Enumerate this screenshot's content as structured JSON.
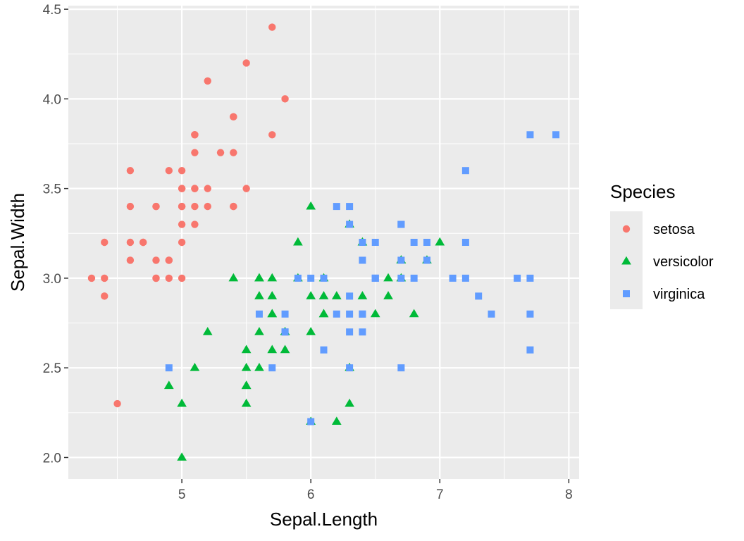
{
  "chart_data": {
    "type": "scatter",
    "xlabel": "Sepal.Length",
    "ylabel": "Sepal.Width",
    "xlim": [
      4.12,
      8.08
    ],
    "ylim": [
      1.88,
      4.52
    ],
    "x_ticks": [
      5,
      6,
      7,
      8
    ],
    "y_ticks": [
      2.0,
      2.5,
      3.0,
      3.5,
      4.0,
      4.5
    ],
    "x_tick_labels": [
      "5",
      "6",
      "7",
      "8"
    ],
    "y_tick_labels": [
      "2.0",
      "2.5",
      "3.0",
      "3.5",
      "4.0",
      "4.5"
    ],
    "grid": true,
    "background": "#ebebeb",
    "legend": {
      "title": "Species",
      "placement": "right"
    },
    "series": [
      {
        "name": "setosa",
        "color": "#f8766d",
        "shape": "circle",
        "points": [
          [
            5.1,
            3.5
          ],
          [
            4.9,
            3.0
          ],
          [
            4.7,
            3.2
          ],
          [
            4.6,
            3.1
          ],
          [
            5.0,
            3.6
          ],
          [
            5.4,
            3.9
          ],
          [
            4.6,
            3.4
          ],
          [
            5.0,
            3.4
          ],
          [
            4.4,
            2.9
          ],
          [
            4.9,
            3.1
          ],
          [
            5.4,
            3.7
          ],
          [
            4.8,
            3.4
          ],
          [
            4.8,
            3.0
          ],
          [
            4.3,
            3.0
          ],
          [
            5.8,
            4.0
          ],
          [
            5.7,
            4.4
          ],
          [
            5.4,
            3.9
          ],
          [
            5.1,
            3.5
          ],
          [
            5.7,
            3.8
          ],
          [
            5.1,
            3.8
          ],
          [
            5.4,
            3.4
          ],
          [
            5.1,
            3.7
          ],
          [
            4.6,
            3.6
          ],
          [
            5.1,
            3.3
          ],
          [
            4.8,
            3.4
          ],
          [
            5.0,
            3.0
          ],
          [
            5.0,
            3.4
          ],
          [
            5.2,
            3.5
          ],
          [
            5.2,
            3.4
          ],
          [
            4.7,
            3.2
          ],
          [
            4.8,
            3.1
          ],
          [
            5.4,
            3.4
          ],
          [
            5.2,
            4.1
          ],
          [
            5.5,
            4.2
          ],
          [
            4.9,
            3.1
          ],
          [
            5.0,
            3.2
          ],
          [
            5.5,
            3.5
          ],
          [
            4.9,
            3.6
          ],
          [
            4.4,
            3.0
          ],
          [
            5.1,
            3.4
          ],
          [
            5.0,
            3.5
          ],
          [
            4.5,
            2.3
          ],
          [
            4.4,
            3.2
          ],
          [
            5.0,
            3.5
          ],
          [
            5.1,
            3.8
          ],
          [
            4.8,
            3.0
          ],
          [
            5.1,
            3.8
          ],
          [
            4.6,
            3.2
          ],
          [
            5.3,
            3.7
          ],
          [
            5.0,
            3.3
          ]
        ]
      },
      {
        "name": "versicolor",
        "color": "#00ba38",
        "shape": "triangle",
        "points": [
          [
            7.0,
            3.2
          ],
          [
            6.4,
            3.2
          ],
          [
            6.9,
            3.1
          ],
          [
            5.5,
            2.3
          ],
          [
            6.5,
            2.8
          ],
          [
            5.7,
            2.8
          ],
          [
            6.3,
            3.3
          ],
          [
            4.9,
            2.4
          ],
          [
            6.6,
            2.9
          ],
          [
            5.2,
            2.7
          ],
          [
            5.0,
            2.0
          ],
          [
            5.9,
            3.0
          ],
          [
            6.0,
            2.2
          ],
          [
            6.1,
            2.9
          ],
          [
            5.6,
            2.9
          ],
          [
            6.7,
            3.1
          ],
          [
            5.6,
            3.0
          ],
          [
            5.8,
            2.7
          ],
          [
            6.2,
            2.2
          ],
          [
            5.6,
            2.5
          ],
          [
            5.9,
            3.2
          ],
          [
            6.1,
            2.8
          ],
          [
            6.3,
            2.5
          ],
          [
            6.1,
            2.8
          ],
          [
            6.4,
            2.9
          ],
          [
            6.6,
            3.0
          ],
          [
            6.8,
            2.8
          ],
          [
            6.7,
            3.0
          ],
          [
            6.0,
            2.9
          ],
          [
            5.7,
            2.6
          ],
          [
            5.5,
            2.4
          ],
          [
            5.5,
            2.4
          ],
          [
            5.8,
            2.7
          ],
          [
            6.0,
            2.7
          ],
          [
            5.4,
            3.0
          ],
          [
            6.0,
            3.4
          ],
          [
            6.7,
            3.1
          ],
          [
            6.3,
            2.3
          ],
          [
            5.6,
            3.0
          ],
          [
            5.5,
            2.5
          ],
          [
            5.5,
            2.6
          ],
          [
            6.1,
            3.0
          ],
          [
            5.8,
            2.6
          ],
          [
            5.0,
            2.3
          ],
          [
            5.6,
            2.7
          ],
          [
            5.7,
            3.0
          ],
          [
            5.7,
            2.9
          ],
          [
            6.2,
            2.9
          ],
          [
            5.1,
            2.5
          ],
          [
            5.7,
            2.8
          ]
        ]
      },
      {
        "name": "virginica",
        "color": "#619cff",
        "shape": "square",
        "points": [
          [
            6.3,
            3.3
          ],
          [
            5.8,
            2.7
          ],
          [
            7.1,
            3.0
          ],
          [
            6.3,
            2.9
          ],
          [
            6.5,
            3.0
          ],
          [
            7.6,
            3.0
          ],
          [
            4.9,
            2.5
          ],
          [
            7.3,
            2.9
          ],
          [
            6.7,
            2.5
          ],
          [
            7.2,
            3.6
          ],
          [
            6.5,
            3.2
          ],
          [
            6.4,
            2.7
          ],
          [
            6.8,
            3.0
          ],
          [
            5.7,
            2.5
          ],
          [
            5.8,
            2.8
          ],
          [
            6.4,
            3.2
          ],
          [
            6.5,
            3.0
          ],
          [
            7.7,
            3.8
          ],
          [
            7.7,
            2.6
          ],
          [
            6.0,
            2.2
          ],
          [
            6.9,
            3.2
          ],
          [
            5.6,
            2.8
          ],
          [
            7.7,
            2.8
          ],
          [
            6.3,
            2.7
          ],
          [
            6.7,
            3.3
          ],
          [
            7.2,
            3.2
          ],
          [
            6.2,
            2.8
          ],
          [
            6.1,
            3.0
          ],
          [
            6.4,
            2.8
          ],
          [
            7.2,
            3.0
          ],
          [
            7.4,
            2.8
          ],
          [
            7.9,
            3.8
          ],
          [
            6.4,
            2.8
          ],
          [
            6.3,
            2.8
          ],
          [
            6.1,
            2.6
          ],
          [
            7.7,
            3.0
          ],
          [
            6.3,
            3.4
          ],
          [
            6.4,
            3.1
          ],
          [
            6.0,
            3.0
          ],
          [
            6.9,
            3.1
          ],
          [
            6.7,
            3.1
          ],
          [
            6.9,
            3.1
          ],
          [
            5.8,
            2.7
          ],
          [
            6.8,
            3.2
          ],
          [
            6.7,
            3.3
          ],
          [
            6.7,
            3.0
          ],
          [
            6.3,
            2.5
          ],
          [
            6.5,
            3.0
          ],
          [
            6.2,
            3.4
          ],
          [
            5.9,
            3.0
          ]
        ]
      }
    ]
  }
}
